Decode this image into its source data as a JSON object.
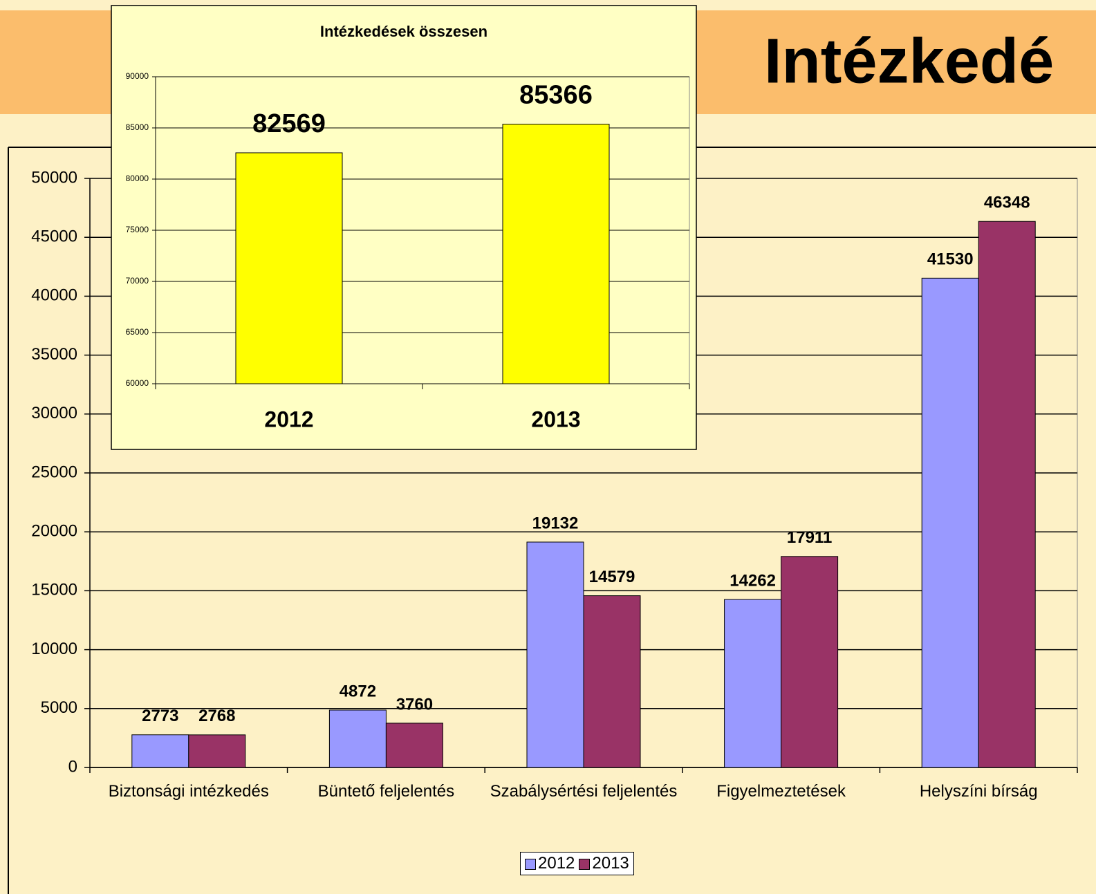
{
  "title": "Intézkedé",
  "chart_data": [
    {
      "type": "bar",
      "categories": [
        "Biztonsági intézkedés",
        "Büntető feljelentés",
        "Szabálysértési feljelentés",
        "Figyelmeztetések",
        "Helyszíni bírság"
      ],
      "series": [
        {
          "name": "2012",
          "color": "#9999ff",
          "values": [
            2773,
            4872,
            19132,
            14262,
            41530
          ]
        },
        {
          "name": "2013",
          "color": "#993366",
          "values": [
            2768,
            3760,
            14579,
            17911,
            46348
          ]
        }
      ],
      "ylim": [
        0,
        50000
      ],
      "yticks": [
        0,
        5000,
        10000,
        15000,
        20000,
        25000,
        30000,
        35000,
        40000,
        45000,
        50000
      ],
      "grid": true,
      "legend": "bottom"
    },
    {
      "type": "bar",
      "title": "Intézkedések összesen",
      "categories": [
        "2012",
        "2013"
      ],
      "values": [
        82569,
        85366
      ],
      "color": "#ffff00",
      "ylim": [
        60000,
        90000
      ],
      "yticks": [
        60000,
        65000,
        70000,
        75000,
        80000,
        85000,
        90000
      ],
      "grid": true
    }
  ]
}
